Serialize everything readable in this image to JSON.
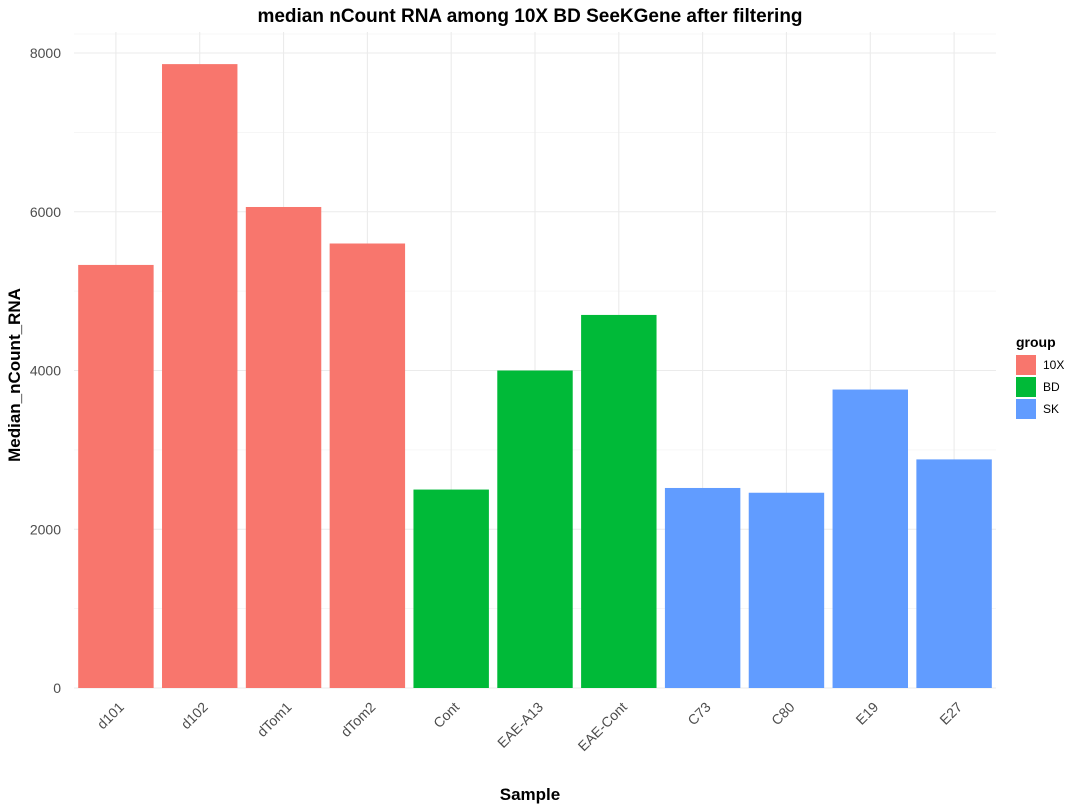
{
  "chart_data": {
    "type": "bar",
    "title": "median nCount RNA among 10X BD SeeKGene after filtering",
    "xlabel": "Sample",
    "ylabel": "Median_nCount_RNA",
    "ylim": [
      0,
      8000
    ],
    "yticks": [
      0,
      2000,
      4000,
      6000,
      8000
    ],
    "grid": true,
    "legend": {
      "title": "group",
      "position": "right",
      "entries": [
        {
          "label": "10X",
          "color": "#F8766D"
        },
        {
          "label": "BD",
          "color": "#00BA38"
        },
        {
          "label": "SK",
          "color": "#619CFF"
        }
      ]
    },
    "categories": [
      "d101",
      "d102",
      "dTom1",
      "dTom2",
      "Cont",
      "EAE-A13",
      "EAE-Cont",
      "C73",
      "C80",
      "E19",
      "E27"
    ],
    "values": [
      5330,
      7860,
      6060,
      5600,
      2500,
      4000,
      4700,
      2520,
      2460,
      3760,
      2880
    ],
    "groups": [
      "10X",
      "10X",
      "10X",
      "10X",
      "BD",
      "BD",
      "BD",
      "SK",
      "SK",
      "SK",
      "SK"
    ]
  }
}
